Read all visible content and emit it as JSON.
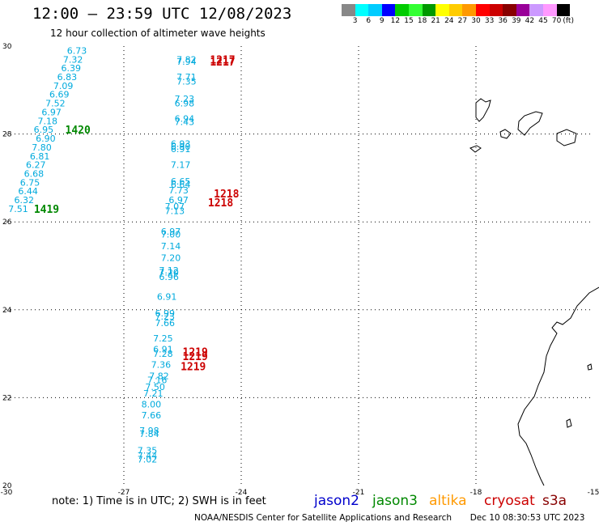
{
  "title": "12:00 – 23:59 UTC 12/08/2023",
  "subtitle": "12 hour collection of altimeter wave heights",
  "colorbar": {
    "colors": [
      "#888888",
      "#00ffff",
      "#00ccff",
      "#0000ff",
      "#00cc00",
      "#33ff33",
      "#009900",
      "#ffff00",
      "#ffcc00",
      "#ff9900",
      "#ff0000",
      "#cc0000",
      "#880000",
      "#990099",
      "#cc99ff",
      "#ff99ff",
      "#000000"
    ],
    "labels": [
      "3",
      "6",
      "9",
      "12",
      "15",
      "18",
      "21",
      "24",
      "27",
      "30",
      "33",
      "36",
      "39",
      "42",
      "45",
      "70"
    ],
    "unit": "(ft)"
  },
  "map": {
    "lon_range": [
      -30,
      -15
    ],
    "lat_range": [
      20,
      30
    ],
    "lon_ticks": [
      "-30",
      "-27",
      "-24",
      "-21",
      "-18",
      "-15"
    ],
    "lat_ticks": [
      "30",
      "28",
      "26",
      "24",
      "22",
      "20"
    ],
    "grid": "dotted",
    "wave_color": "#00aadd",
    "time_color": "#cc0000",
    "track_time_color": "#008800",
    "tracks": [
      {
        "satellite": "jason3",
        "labels": [
          "6.73",
          "7.32",
          "6.39",
          "6.83",
          "7.09",
          "6.69",
          "7.52",
          "6.97",
          "7.18",
          "6.95",
          "6.90",
          "7.80",
          "6.81",
          "6.27",
          "6.68",
          "6.75",
          "6.44",
          "6.32",
          "7.51"
        ],
        "lon": [
          -28.2,
          -28.3,
          -28.35,
          -28.45,
          -28.55,
          -28.65,
          -28.75,
          -28.85,
          -28.95,
          -29.05,
          -29.0,
          -29.1,
          -29.15,
          -29.25,
          -29.3,
          -29.4,
          -29.45,
          -29.55,
          -29.7
        ],
        "lat": [
          29.9,
          29.7,
          29.5,
          29.3,
          29.1,
          28.9,
          28.7,
          28.5,
          28.3,
          28.1,
          27.9,
          27.7,
          27.5,
          27.3,
          27.1,
          26.9,
          26.7,
          26.5,
          26.3
        ],
        "times": [
          {
            "text": "1420",
            "lon": -28.5,
            "lat": 28.1
          },
          {
            "text": "1419",
            "lon": -29.3,
            "lat": 26.3
          }
        ]
      },
      {
        "satellite": "cryosat",
        "labels": [
          "7.82",
          "7.94",
          "7.71",
          "7.35",
          "7.23",
          "6.98",
          "6.94",
          "7.43",
          "6.93",
          "6.90",
          "6.91",
          "7.17",
          "6.65",
          "6.64",
          "7.73",
          "6.97",
          "7.07",
          "7.13",
          "6.97",
          "7.00",
          "7.14",
          "7.20",
          "7.12",
          "7.20",
          "6.96",
          "6.91",
          "6.99",
          "7.23",
          "7.66",
          "7.25",
          "6.91",
          "7.28",
          "7.36",
          "7.82",
          "7.16",
          "7.50",
          "7.21",
          "8.00",
          "7.66",
          "7.98",
          "7.84",
          "7.35",
          "7.44",
          "7.02"
        ],
        "lon": [
          -25.4,
          -25.4,
          -25.4,
          -25.4,
          -25.45,
          -25.45,
          -25.45,
          -25.45,
          -25.55,
          -25.55,
          -25.55,
          -25.55,
          -25.55,
          -25.55,
          -25.6,
          -25.6,
          -25.7,
          -25.7,
          -25.8,
          -25.8,
          -25.8,
          -25.8,
          -25.85,
          -25.85,
          -25.85,
          -25.9,
          -25.95,
          -25.95,
          -25.95,
          -26.0,
          -26.0,
          -26.0,
          -26.05,
          -26.1,
          -26.15,
          -26.2,
          -26.25,
          -26.3,
          -26.3,
          -26.35,
          -26.35,
          -26.4,
          -26.4,
          -26.4
        ],
        "lat": [
          29.7,
          29.65,
          29.3,
          29.2,
          28.8,
          28.7,
          28.35,
          28.28,
          27.78,
          27.72,
          27.66,
          27.3,
          26.92,
          26.85,
          26.72,
          26.5,
          26.35,
          26.25,
          25.78,
          25.72,
          25.45,
          25.18,
          24.9,
          24.85,
          24.75,
          24.3,
          23.92,
          23.85,
          23.7,
          23.35,
          23.1,
          23.0,
          22.75,
          22.5,
          22.4,
          22.25,
          22.1,
          21.85,
          21.6,
          21.25,
          21.18,
          20.8,
          20.68,
          20.6
        ],
        "times": [
          {
            "text": "1217",
            "lon": -24.8,
            "lat": 29.7
          },
          {
            "text": "1217",
            "lon": -24.8,
            "lat": 29.65
          },
          {
            "text": "1218",
            "lon": -24.7,
            "lat": 26.65
          },
          {
            "text": "1218",
            "lon": -24.85,
            "lat": 26.45
          },
          {
            "text": "1219",
            "lon": -25.5,
            "lat": 23.05
          },
          {
            "text": "1219",
            "lon": -25.5,
            "lat": 22.95
          },
          {
            "text": "1219",
            "lon": -25.55,
            "lat": 22.72
          }
        ]
      }
    ]
  },
  "legend": {
    "note": "note: 1) Time is in UTC; 2) SWH is in feet",
    "satellites": [
      {
        "name": "jason2",
        "color": "#0000cc"
      },
      {
        "name": "jason3",
        "color": "#008800"
      },
      {
        "name": "altika",
        "color": "#ff9900"
      },
      {
        "name": "cryosat",
        "color": "#cc0000"
      },
      {
        "name": "s3a",
        "color": "#880000"
      }
    ]
  },
  "credit": "NOAA/NESDIS Center for Satellite Applications and Research",
  "timestamp": "Dec 10 08:30:53 UTC 2023"
}
